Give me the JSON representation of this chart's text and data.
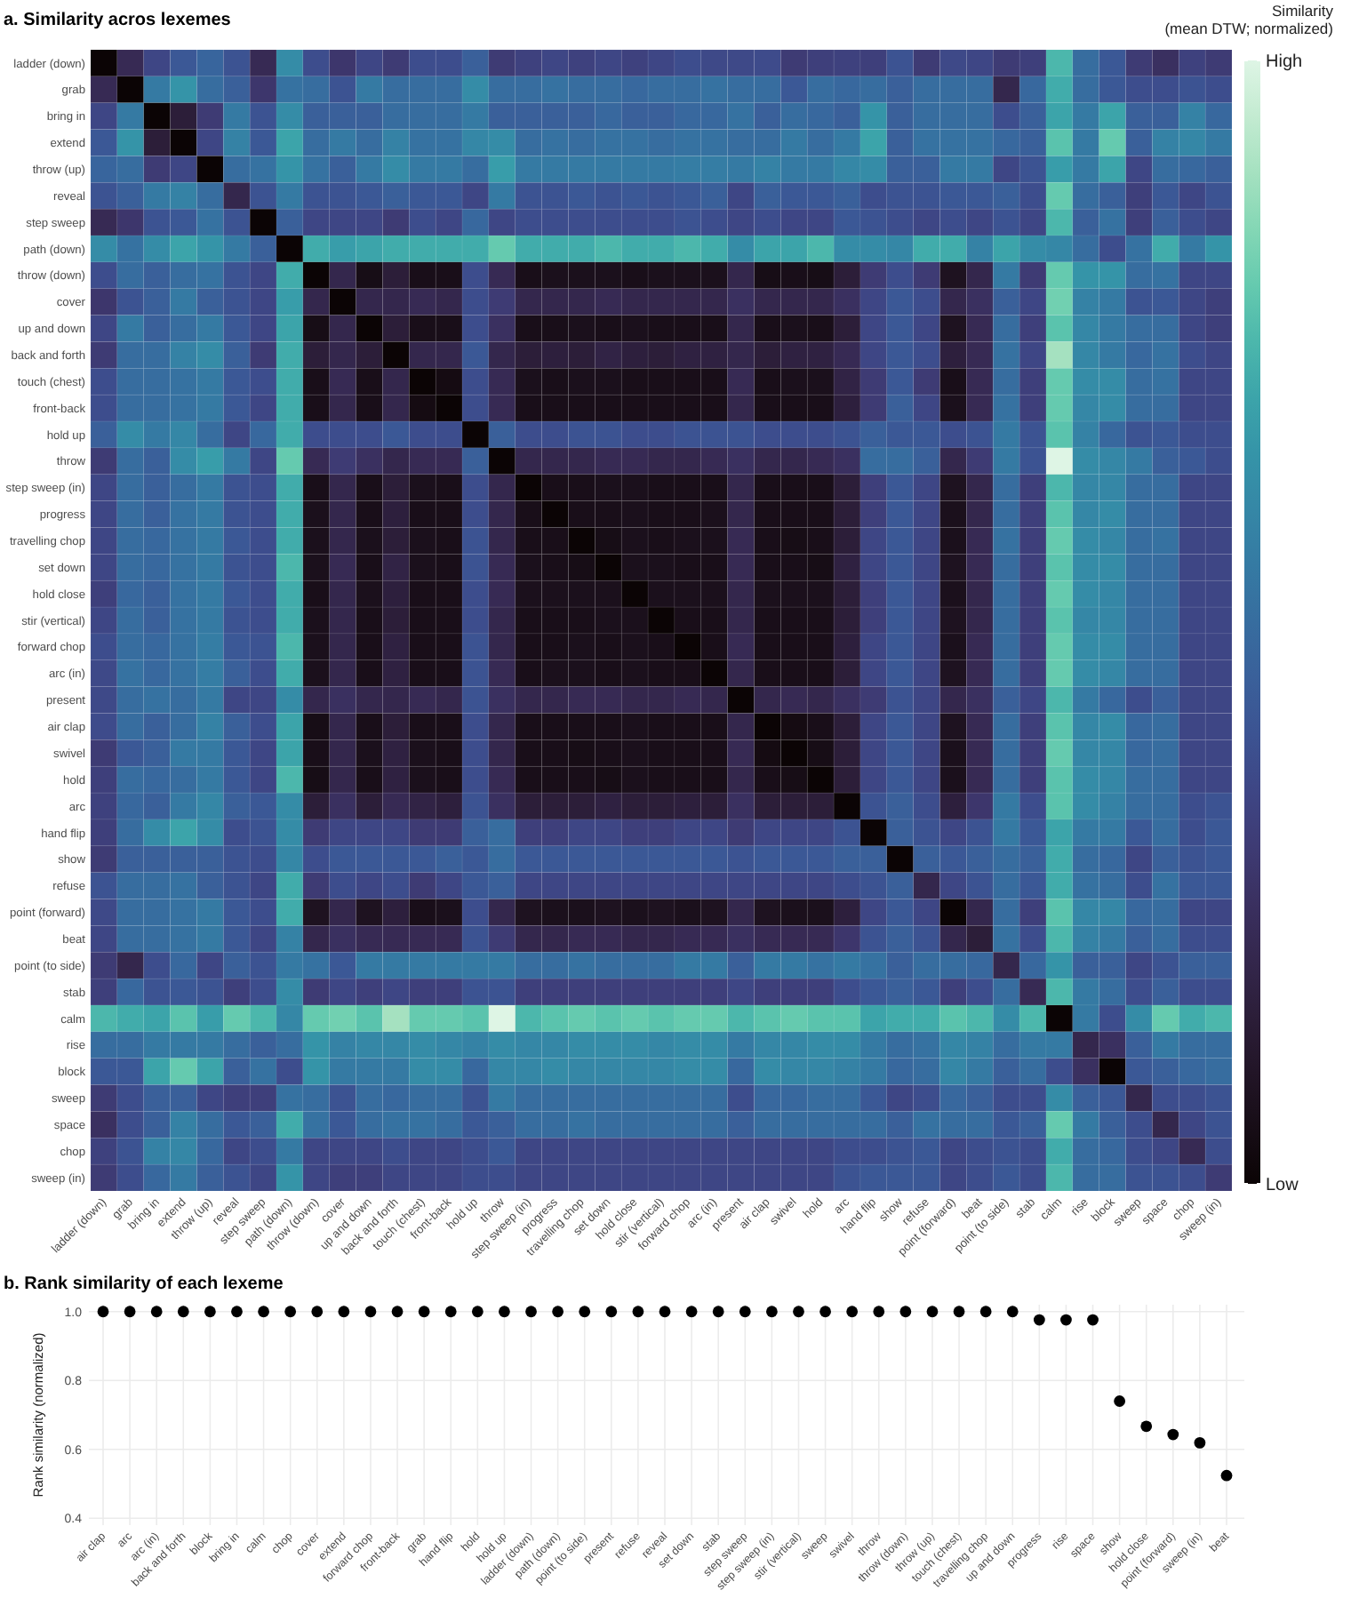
{
  "chart_data": [
    {
      "type": "heatmap",
      "title": "a. Similarity acros lexemes",
      "clabel": "Similarity\n(mean DTW; normalized)",
      "categories": [
        "ladder (down)",
        "grab",
        "bring in",
        "extend",
        "throw (up)",
        "reveal",
        "step sweep",
        "path (down)",
        "throw (down)",
        "cover",
        "up and down",
        "back and forth",
        "touch (chest)",
        "front-back",
        "hold up",
        "throw",
        "step sweep (in)",
        "progress",
        "travelling chop",
        "set down",
        "hold close",
        "stir (vertical)",
        "forward chop",
        "arc (in)",
        "present",
        "air clap",
        "swivel",
        "hold",
        "arc",
        "hand flip",
        "show",
        "refuse",
        "point (forward)",
        "beat",
        "point (to side)",
        "stab",
        "calm",
        "rise",
        "block",
        "sweep",
        "space",
        "chop",
        "sweep (in)"
      ],
      "y_categories": [
        "ladder (down)",
        "grab",
        "bring in",
        "extend",
        "throw (up)",
        "reveal",
        "step sweep",
        "path (down)",
        "throw (down)",
        "cover",
        "up and down",
        "back and forth",
        "touch (chest)",
        "front-back",
        "hold up",
        "throw",
        "step sweep (in)",
        "progress",
        "travelling chop",
        "set down",
        "hold close",
        "stir (vertical)",
        "forward chop",
        "arc (in)",
        "present",
        "air clap",
        "swivel",
        "hold",
        "arc",
        "hand flip",
        "show",
        "refuse",
        "point (forward)",
        "beat",
        "point (to side)",
        "stab",
        "calm",
        "rise",
        "block",
        "sweep",
        "space",
        "chop",
        "sweep (in)"
      ],
      "clim": [
        0,
        1
      ],
      "cticks": [
        {
          "value": 1,
          "label": "High"
        },
        {
          "value": 0,
          "label": "Low"
        }
      ],
      "cells": [
        [
          0,
          0.22,
          0.35,
          0.42,
          0.47,
          0.4,
          0.22,
          0.62,
          0.38,
          0.28,
          0.35,
          0.3,
          0.38,
          0.38,
          0.45,
          0.3,
          0.33,
          0.35,
          0.33,
          0.35,
          0.33,
          0.35,
          0.38,
          0.36,
          0.36,
          0.37,
          0.3,
          0.32,
          0.33,
          0.32,
          0.4,
          0.3,
          0.36,
          0.35,
          0.3,
          0.32,
          0.75,
          0.5,
          0.42,
          0.3,
          0.25,
          0.33,
          0.3
        ],
        [
          0.22,
          0,
          0.55,
          0.65,
          0.5,
          0.45,
          0.28,
          0.52,
          0.5,
          0.4,
          0.55,
          0.5,
          0.5,
          0.5,
          0.62,
          0.5,
          0.5,
          0.52,
          0.5,
          0.5,
          0.48,
          0.5,
          0.5,
          0.52,
          0.5,
          0.5,
          0.42,
          0.5,
          0.48,
          0.5,
          0.45,
          0.5,
          0.5,
          0.5,
          0.2,
          0.48,
          0.72,
          0.5,
          0.42,
          0.38,
          0.38,
          0.4,
          0.38
        ],
        [
          0.35,
          0.55,
          0,
          0.15,
          0.3,
          0.55,
          0.4,
          0.62,
          0.45,
          0.45,
          0.45,
          0.5,
          0.5,
          0.5,
          0.55,
          0.45,
          0.45,
          0.45,
          0.45,
          0.48,
          0.45,
          0.45,
          0.48,
          0.48,
          0.52,
          0.45,
          0.5,
          0.48,
          0.45,
          0.65,
          0.45,
          0.5,
          0.5,
          0.5,
          0.38,
          0.45,
          0.7,
          0.55,
          0.7,
          0.45,
          0.45,
          0.58,
          0.48
        ],
        [
          0.42,
          0.65,
          0.15,
          0,
          0.35,
          0.58,
          0.42,
          0.7,
          0.5,
          0.55,
          0.5,
          0.58,
          0.52,
          0.52,
          0.6,
          0.62,
          0.5,
          0.52,
          0.5,
          0.52,
          0.52,
          0.5,
          0.52,
          0.52,
          0.5,
          0.5,
          0.55,
          0.5,
          0.55,
          0.7,
          0.45,
          0.52,
          0.52,
          0.52,
          0.48,
          0.45,
          0.78,
          0.55,
          0.8,
          0.45,
          0.58,
          0.6,
          0.55
        ],
        [
          0.47,
          0.5,
          0.3,
          0.35,
          0,
          0.5,
          0.52,
          0.65,
          0.52,
          0.45,
          0.55,
          0.62,
          0.55,
          0.55,
          0.5,
          0.68,
          0.55,
          0.55,
          0.55,
          0.55,
          0.55,
          0.55,
          0.56,
          0.56,
          0.55,
          0.58,
          0.55,
          0.55,
          0.6,
          0.62,
          0.45,
          0.45,
          0.55,
          0.55,
          0.35,
          0.4,
          0.68,
          0.55,
          0.7,
          0.35,
          0.5,
          0.48,
          0.45
        ],
        [
          0.4,
          0.45,
          0.55,
          0.58,
          0.5,
          0.2,
          0.4,
          0.55,
          0.4,
          0.4,
          0.42,
          0.45,
          0.42,
          0.42,
          0.35,
          0.55,
          0.4,
          0.4,
          0.42,
          0.4,
          0.42,
          0.4,
          0.42,
          0.45,
          0.35,
          0.45,
          0.42,
          0.42,
          0.45,
          0.38,
          0.4,
          0.4,
          0.42,
          0.42,
          0.45,
          0.38,
          0.8,
          0.5,
          0.45,
          0.32,
          0.42,
          0.35,
          0.4
        ],
        [
          0.22,
          0.28,
          0.4,
          0.42,
          0.52,
          0.4,
          0,
          0.45,
          0.35,
          0.35,
          0.35,
          0.3,
          0.38,
          0.35,
          0.48,
          0.35,
          0.38,
          0.38,
          0.38,
          0.38,
          0.38,
          0.38,
          0.4,
          0.38,
          0.35,
          0.38,
          0.35,
          0.35,
          0.42,
          0.4,
          0.38,
          0.35,
          0.38,
          0.35,
          0.4,
          0.35,
          0.75,
          0.45,
          0.52,
          0.32,
          0.45,
          0.38,
          0.35
        ],
        [
          0.62,
          0.52,
          0.62,
          0.7,
          0.65,
          0.55,
          0.45,
          0,
          0.72,
          0.68,
          0.7,
          0.72,
          0.72,
          0.72,
          0.72,
          0.8,
          0.72,
          0.72,
          0.72,
          0.75,
          0.72,
          0.72,
          0.75,
          0.72,
          0.62,
          0.7,
          0.7,
          0.75,
          0.62,
          0.62,
          0.6,
          0.72,
          0.72,
          0.58,
          0.7,
          0.62,
          0.6,
          0.5,
          0.38,
          0.52,
          0.72,
          0.55,
          0.65
        ],
        [
          0.38,
          0.5,
          0.45,
          0.5,
          0.52,
          0.4,
          0.35,
          0.72,
          0,
          0.2,
          0.05,
          0.15,
          0.06,
          0.06,
          0.38,
          0.22,
          0.06,
          0.07,
          0.07,
          0.07,
          0.06,
          0.07,
          0.07,
          0.07,
          0.2,
          0.05,
          0.06,
          0.05,
          0.15,
          0.3,
          0.38,
          0.3,
          0.08,
          0.2,
          0.55,
          0.3,
          0.8,
          0.65,
          0.65,
          0.5,
          0.52,
          0.35,
          0.35
        ],
        [
          0.28,
          0.4,
          0.45,
          0.55,
          0.45,
          0.4,
          0.35,
          0.68,
          0.2,
          0,
          0.2,
          0.2,
          0.22,
          0.2,
          0.38,
          0.3,
          0.2,
          0.2,
          0.2,
          0.22,
          0.2,
          0.2,
          0.2,
          0.2,
          0.25,
          0.2,
          0.2,
          0.2,
          0.25,
          0.35,
          0.42,
          0.38,
          0.2,
          0.25,
          0.45,
          0.35,
          0.82,
          0.58,
          0.55,
          0.4,
          0.42,
          0.35,
          0.32
        ],
        [
          0.35,
          0.55,
          0.45,
          0.5,
          0.55,
          0.42,
          0.35,
          0.7,
          0.05,
          0.2,
          0,
          0.15,
          0.06,
          0.06,
          0.38,
          0.25,
          0.06,
          0.06,
          0.07,
          0.06,
          0.07,
          0.06,
          0.06,
          0.06,
          0.2,
          0.06,
          0.07,
          0.06,
          0.15,
          0.35,
          0.42,
          0.35,
          0.08,
          0.22,
          0.5,
          0.32,
          0.78,
          0.6,
          0.55,
          0.5,
          0.5,
          0.35,
          0.32
        ],
        [
          0.3,
          0.5,
          0.5,
          0.58,
          0.62,
          0.45,
          0.3,
          0.72,
          0.15,
          0.2,
          0.15,
          0,
          0.2,
          0.2,
          0.42,
          0.2,
          0.15,
          0.16,
          0.15,
          0.18,
          0.16,
          0.15,
          0.17,
          0.17,
          0.2,
          0.15,
          0.17,
          0.17,
          0.22,
          0.35,
          0.42,
          0.38,
          0.16,
          0.22,
          0.52,
          0.35,
          0.9,
          0.6,
          0.55,
          0.48,
          0.52,
          0.38,
          0.35
        ],
        [
          0.38,
          0.5,
          0.5,
          0.52,
          0.55,
          0.42,
          0.38,
          0.72,
          0.06,
          0.22,
          0.06,
          0.2,
          0,
          0.04,
          0.38,
          0.22,
          0.07,
          0.06,
          0.07,
          0.07,
          0.06,
          0.06,
          0.06,
          0.06,
          0.22,
          0.06,
          0.07,
          0.07,
          0.18,
          0.3,
          0.42,
          0.3,
          0.06,
          0.22,
          0.5,
          0.32,
          0.8,
          0.62,
          0.62,
          0.5,
          0.52,
          0.35,
          0.35
        ],
        [
          0.38,
          0.5,
          0.5,
          0.52,
          0.55,
          0.42,
          0.35,
          0.72,
          0.06,
          0.2,
          0.06,
          0.2,
          0.04,
          0,
          0.38,
          0.22,
          0.06,
          0.06,
          0.06,
          0.06,
          0.06,
          0.06,
          0.06,
          0.06,
          0.2,
          0.06,
          0.06,
          0.06,
          0.16,
          0.3,
          0.45,
          0.35,
          0.07,
          0.22,
          0.52,
          0.32,
          0.8,
          0.6,
          0.62,
          0.5,
          0.5,
          0.35,
          0.35
        ],
        [
          0.45,
          0.62,
          0.55,
          0.6,
          0.5,
          0.35,
          0.48,
          0.72,
          0.38,
          0.38,
          0.38,
          0.42,
          0.38,
          0.38,
          0,
          0.45,
          0.38,
          0.38,
          0.4,
          0.4,
          0.38,
          0.38,
          0.4,
          0.4,
          0.4,
          0.38,
          0.38,
          0.38,
          0.4,
          0.45,
          0.42,
          0.42,
          0.38,
          0.4,
          0.55,
          0.4,
          0.78,
          0.58,
          0.48,
          0.4,
          0.42,
          0.38,
          0.38
        ],
        [
          0.3,
          0.5,
          0.45,
          0.62,
          0.68,
          0.55,
          0.35,
          0.8,
          0.22,
          0.3,
          0.25,
          0.2,
          0.22,
          0.22,
          0.45,
          0,
          0.2,
          0.2,
          0.2,
          0.22,
          0.22,
          0.2,
          0.2,
          0.22,
          0.25,
          0.2,
          0.2,
          0.22,
          0.25,
          0.5,
          0.5,
          0.45,
          0.2,
          0.3,
          0.55,
          0.4,
          1,
          0.62,
          0.6,
          0.55,
          0.45,
          0.42,
          0.38
        ],
        [
          0.35,
          0.5,
          0.45,
          0.5,
          0.55,
          0.4,
          0.38,
          0.72,
          0.06,
          0.2,
          0.06,
          0.15,
          0.07,
          0.06,
          0.38,
          0.2,
          0,
          0.06,
          0.06,
          0.07,
          0.07,
          0.06,
          0.06,
          0.06,
          0.2,
          0.06,
          0.06,
          0.06,
          0.15,
          0.32,
          0.42,
          0.35,
          0.08,
          0.2,
          0.5,
          0.32,
          0.75,
          0.6,
          0.6,
          0.5,
          0.5,
          0.35,
          0.35
        ],
        [
          0.35,
          0.5,
          0.45,
          0.52,
          0.55,
          0.4,
          0.38,
          0.72,
          0.07,
          0.2,
          0.06,
          0.16,
          0.06,
          0.06,
          0.38,
          0.2,
          0.06,
          0,
          0.06,
          0.06,
          0.07,
          0.06,
          0.06,
          0.07,
          0.2,
          0.06,
          0.06,
          0.06,
          0.15,
          0.32,
          0.42,
          0.35,
          0.07,
          0.2,
          0.5,
          0.32,
          0.78,
          0.6,
          0.62,
          0.5,
          0.5,
          0.35,
          0.35
        ],
        [
          0.35,
          0.5,
          0.48,
          0.52,
          0.55,
          0.42,
          0.38,
          0.72,
          0.07,
          0.2,
          0.07,
          0.15,
          0.07,
          0.06,
          0.4,
          0.2,
          0.06,
          0.06,
          0,
          0.05,
          0.07,
          0.06,
          0.07,
          0.07,
          0.22,
          0.06,
          0.05,
          0.06,
          0.15,
          0.35,
          0.42,
          0.35,
          0.07,
          0.22,
          0.52,
          0.32,
          0.8,
          0.62,
          0.6,
          0.5,
          0.52,
          0.35,
          0.35
        ],
        [
          0.35,
          0.5,
          0.48,
          0.52,
          0.55,
          0.4,
          0.38,
          0.75,
          0.07,
          0.22,
          0.06,
          0.18,
          0.07,
          0.06,
          0.4,
          0.22,
          0.07,
          0.06,
          0.05,
          0,
          0.07,
          0.07,
          0.06,
          0.06,
          0.22,
          0.06,
          0.06,
          0.05,
          0.17,
          0.35,
          0.42,
          0.35,
          0.08,
          0.22,
          0.5,
          0.32,
          0.78,
          0.62,
          0.62,
          0.5,
          0.5,
          0.35,
          0.35
        ],
        [
          0.32,
          0.48,
          0.45,
          0.52,
          0.55,
          0.42,
          0.38,
          0.72,
          0.06,
          0.2,
          0.07,
          0.16,
          0.06,
          0.06,
          0.38,
          0.22,
          0.07,
          0.07,
          0.07,
          0.07,
          0,
          0.07,
          0.07,
          0.07,
          0.2,
          0.07,
          0.07,
          0.07,
          0.15,
          0.32,
          0.42,
          0.35,
          0.07,
          0.2,
          0.5,
          0.32,
          0.8,
          0.62,
          0.6,
          0.5,
          0.5,
          0.35,
          0.35
        ],
        [
          0.35,
          0.5,
          0.45,
          0.52,
          0.55,
          0.4,
          0.38,
          0.72,
          0.07,
          0.2,
          0.06,
          0.15,
          0.06,
          0.06,
          0.38,
          0.2,
          0.06,
          0.06,
          0.06,
          0.07,
          0.07,
          0,
          0.06,
          0.06,
          0.2,
          0.06,
          0.06,
          0.06,
          0.15,
          0.32,
          0.42,
          0.35,
          0.08,
          0.2,
          0.5,
          0.32,
          0.78,
          0.6,
          0.6,
          0.5,
          0.5,
          0.35,
          0.35
        ],
        [
          0.38,
          0.5,
          0.48,
          0.52,
          0.56,
          0.42,
          0.4,
          0.75,
          0.07,
          0.2,
          0.06,
          0.17,
          0.06,
          0.06,
          0.4,
          0.2,
          0.06,
          0.06,
          0.07,
          0.06,
          0.07,
          0.06,
          0,
          0.06,
          0.22,
          0.06,
          0.06,
          0.06,
          0.16,
          0.35,
          0.42,
          0.35,
          0.07,
          0.22,
          0.5,
          0.32,
          0.8,
          0.62,
          0.62,
          0.5,
          0.5,
          0.35,
          0.35
        ],
        [
          0.36,
          0.52,
          0.48,
          0.52,
          0.56,
          0.45,
          0.38,
          0.72,
          0.07,
          0.2,
          0.06,
          0.17,
          0.06,
          0.06,
          0.4,
          0.22,
          0.06,
          0.07,
          0.07,
          0.06,
          0.07,
          0.06,
          0.06,
          0,
          0.2,
          0.06,
          0.06,
          0.06,
          0.15,
          0.35,
          0.42,
          0.35,
          0.08,
          0.22,
          0.5,
          0.32,
          0.8,
          0.62,
          0.6,
          0.5,
          0.5,
          0.35,
          0.35
        ],
        [
          0.36,
          0.5,
          0.52,
          0.5,
          0.55,
          0.35,
          0.35,
          0.62,
          0.2,
          0.25,
          0.2,
          0.2,
          0.22,
          0.2,
          0.4,
          0.25,
          0.2,
          0.2,
          0.22,
          0.22,
          0.2,
          0.2,
          0.22,
          0.2,
          0,
          0.2,
          0.22,
          0.2,
          0.25,
          0.3,
          0.4,
          0.35,
          0.2,
          0.25,
          0.45,
          0.35,
          0.75,
          0.55,
          0.48,
          0.38,
          0.45,
          0.35,
          0.35
        ],
        [
          0.37,
          0.5,
          0.45,
          0.5,
          0.58,
          0.45,
          0.38,
          0.7,
          0.05,
          0.2,
          0.06,
          0.15,
          0.06,
          0.06,
          0.38,
          0.2,
          0.06,
          0.06,
          0.06,
          0.06,
          0.07,
          0.06,
          0.06,
          0.06,
          0.2,
          0,
          0.04,
          0.06,
          0.15,
          0.35,
          0.42,
          0.35,
          0.08,
          0.22,
          0.5,
          0.32,
          0.78,
          0.6,
          0.62,
          0.48,
          0.5,
          0.35,
          0.35
        ],
        [
          0.3,
          0.42,
          0.45,
          0.55,
          0.55,
          0.42,
          0.35,
          0.7,
          0.06,
          0.2,
          0.07,
          0.17,
          0.07,
          0.06,
          0.38,
          0.2,
          0.06,
          0.06,
          0.05,
          0.06,
          0.07,
          0.06,
          0.06,
          0.06,
          0.22,
          0.04,
          0,
          0.05,
          0.15,
          0.35,
          0.42,
          0.35,
          0.07,
          0.22,
          0.5,
          0.32,
          0.8,
          0.6,
          0.6,
          0.48,
          0.5,
          0.35,
          0.35
        ],
        [
          0.32,
          0.5,
          0.48,
          0.5,
          0.55,
          0.42,
          0.35,
          0.75,
          0.05,
          0.2,
          0.06,
          0.17,
          0.07,
          0.06,
          0.38,
          0.22,
          0.06,
          0.06,
          0.06,
          0.05,
          0.07,
          0.06,
          0.06,
          0.06,
          0.2,
          0.06,
          0.05,
          0,
          0.15,
          0.35,
          0.42,
          0.35,
          0.07,
          0.22,
          0.5,
          0.32,
          0.78,
          0.62,
          0.6,
          0.5,
          0.5,
          0.35,
          0.35
        ],
        [
          0.33,
          0.48,
          0.45,
          0.55,
          0.6,
          0.45,
          0.42,
          0.62,
          0.15,
          0.25,
          0.15,
          0.22,
          0.18,
          0.16,
          0.4,
          0.25,
          0.15,
          0.15,
          0.15,
          0.17,
          0.15,
          0.15,
          0.16,
          0.15,
          0.25,
          0.15,
          0.15,
          0.15,
          0,
          0.4,
          0.45,
          0.38,
          0.16,
          0.28,
          0.55,
          0.38,
          0.78,
          0.62,
          0.58,
          0.5,
          0.5,
          0.38,
          0.4
        ],
        [
          0.32,
          0.5,
          0.62,
          0.7,
          0.62,
          0.38,
          0.4,
          0.62,
          0.3,
          0.35,
          0.35,
          0.35,
          0.3,
          0.3,
          0.45,
          0.5,
          0.32,
          0.32,
          0.35,
          0.35,
          0.32,
          0.32,
          0.35,
          0.35,
          0.3,
          0.35,
          0.35,
          0.35,
          0.4,
          0,
          0.45,
          0.4,
          0.35,
          0.4,
          0.55,
          0.42,
          0.7,
          0.55,
          0.55,
          0.42,
          0.5,
          0.38,
          0.42
        ],
        [
          0.3,
          0.45,
          0.45,
          0.45,
          0.45,
          0.4,
          0.38,
          0.6,
          0.38,
          0.42,
          0.42,
          0.42,
          0.42,
          0.45,
          0.42,
          0.5,
          0.42,
          0.42,
          0.42,
          0.42,
          0.42,
          0.42,
          0.42,
          0.42,
          0.4,
          0.42,
          0.42,
          0.42,
          0.45,
          0.45,
          0,
          0.45,
          0.42,
          0.45,
          0.5,
          0.45,
          0.72,
          0.5,
          0.48,
          0.35,
          0.45,
          0.4,
          0.42
        ],
        [
          0.4,
          0.5,
          0.5,
          0.52,
          0.45,
          0.4,
          0.35,
          0.72,
          0.3,
          0.38,
          0.35,
          0.38,
          0.3,
          0.35,
          0.42,
          0.45,
          0.35,
          0.35,
          0.35,
          0.35,
          0.35,
          0.35,
          0.35,
          0.35,
          0.35,
          0.35,
          0.35,
          0.35,
          0.38,
          0.4,
          0.45,
          0.2,
          0.35,
          0.4,
          0.5,
          0.42,
          0.72,
          0.52,
          0.5,
          0.38,
          0.52,
          0.42,
          0.42
        ],
        [
          0.36,
          0.5,
          0.5,
          0.52,
          0.55,
          0.42,
          0.38,
          0.72,
          0.08,
          0.2,
          0.08,
          0.16,
          0.06,
          0.07,
          0.38,
          0.2,
          0.08,
          0.07,
          0.07,
          0.08,
          0.07,
          0.08,
          0.07,
          0.08,
          0.2,
          0.08,
          0.07,
          0.07,
          0.16,
          0.35,
          0.42,
          0.35,
          0,
          0.2,
          0.5,
          0.32,
          0.78,
          0.6,
          0.6,
          0.48,
          0.5,
          0.35,
          0.35
        ],
        [
          0.35,
          0.5,
          0.5,
          0.52,
          0.55,
          0.42,
          0.35,
          0.58,
          0.2,
          0.25,
          0.22,
          0.22,
          0.22,
          0.22,
          0.4,
          0.3,
          0.2,
          0.2,
          0.22,
          0.22,
          0.2,
          0.2,
          0.22,
          0.22,
          0.25,
          0.22,
          0.22,
          0.22,
          0.28,
          0.4,
          0.45,
          0.4,
          0.2,
          0.15,
          0.52,
          0.38,
          0.75,
          0.58,
          0.55,
          0.45,
          0.5,
          0.38,
          0.38
        ],
        [
          0.3,
          0.2,
          0.38,
          0.48,
          0.35,
          0.45,
          0.4,
          0.55,
          0.52,
          0.42,
          0.55,
          0.55,
          0.55,
          0.55,
          0.55,
          0.55,
          0.5,
          0.5,
          0.52,
          0.5,
          0.5,
          0.5,
          0.55,
          0.55,
          0.45,
          0.55,
          0.55,
          0.52,
          0.55,
          0.52,
          0.45,
          0.5,
          0.5,
          0.48,
          0.2,
          0.48,
          0.65,
          0.45,
          0.45,
          0.35,
          0.4,
          0.45,
          0.45
        ],
        [
          0.32,
          0.48,
          0.4,
          0.42,
          0.4,
          0.32,
          0.38,
          0.62,
          0.3,
          0.35,
          0.32,
          0.35,
          0.32,
          0.32,
          0.4,
          0.4,
          0.32,
          0.32,
          0.32,
          0.32,
          0.32,
          0.32,
          0.32,
          0.32,
          0.35,
          0.32,
          0.32,
          0.32,
          0.38,
          0.42,
          0.45,
          0.42,
          0.32,
          0.38,
          0.5,
          0.22,
          0.75,
          0.55,
          0.5,
          0.38,
          0.45,
          0.38,
          0.38
        ],
        [
          0.75,
          0.72,
          0.7,
          0.78,
          0.68,
          0.8,
          0.75,
          0.6,
          0.8,
          0.82,
          0.78,
          0.9,
          0.8,
          0.8,
          0.78,
          1,
          0.75,
          0.78,
          0.8,
          0.78,
          0.8,
          0.78,
          0.8,
          0.8,
          0.75,
          0.78,
          0.8,
          0.78,
          0.78,
          0.7,
          0.72,
          0.72,
          0.78,
          0.75,
          0.62,
          0.75,
          0,
          0.55,
          0.38,
          0.62,
          0.8,
          0.72,
          0.75
        ],
        [
          0.5,
          0.5,
          0.55,
          0.55,
          0.55,
          0.5,
          0.45,
          0.5,
          0.65,
          0.58,
          0.6,
          0.6,
          0.62,
          0.6,
          0.58,
          0.62,
          0.6,
          0.6,
          0.62,
          0.62,
          0.62,
          0.6,
          0.62,
          0.62,
          0.55,
          0.6,
          0.6,
          0.62,
          0.62,
          0.55,
          0.5,
          0.52,
          0.6,
          0.58,
          0.5,
          0.55,
          0.55,
          0.2,
          0.25,
          0.45,
          0.55,
          0.5,
          0.5
        ],
        [
          0.42,
          0.42,
          0.7,
          0.8,
          0.7,
          0.45,
          0.52,
          0.38,
          0.65,
          0.55,
          0.55,
          0.55,
          0.62,
          0.62,
          0.48,
          0.6,
          0.6,
          0.62,
          0.6,
          0.6,
          0.6,
          0.6,
          0.62,
          0.62,
          0.48,
          0.62,
          0.6,
          0.6,
          0.58,
          0.55,
          0.48,
          0.5,
          0.6,
          0.55,
          0.45,
          0.5,
          0.38,
          0.25,
          0,
          0.42,
          0.45,
          0.48,
          0.5
        ],
        [
          0.3,
          0.38,
          0.45,
          0.45,
          0.35,
          0.32,
          0.32,
          0.52,
          0.5,
          0.4,
          0.5,
          0.48,
          0.5,
          0.5,
          0.4,
          0.55,
          0.5,
          0.5,
          0.5,
          0.5,
          0.5,
          0.5,
          0.5,
          0.5,
          0.38,
          0.48,
          0.48,
          0.5,
          0.5,
          0.42,
          0.35,
          0.38,
          0.48,
          0.45,
          0.38,
          0.38,
          0.62,
          0.45,
          0.42,
          0.2,
          0.38,
          0.38,
          0.4
        ],
        [
          0.25,
          0.38,
          0.45,
          0.58,
          0.5,
          0.42,
          0.45,
          0.72,
          0.52,
          0.42,
          0.5,
          0.52,
          0.52,
          0.5,
          0.42,
          0.45,
          0.5,
          0.5,
          0.52,
          0.5,
          0.5,
          0.5,
          0.5,
          0.5,
          0.45,
          0.5,
          0.5,
          0.5,
          0.5,
          0.5,
          0.45,
          0.52,
          0.5,
          0.5,
          0.42,
          0.45,
          0.8,
          0.55,
          0.45,
          0.38,
          0.2,
          0.35,
          0.4
        ],
        [
          0.33,
          0.4,
          0.58,
          0.6,
          0.48,
          0.35,
          0.38,
          0.55,
          0.35,
          0.35,
          0.35,
          0.38,
          0.35,
          0.35,
          0.38,
          0.42,
          0.35,
          0.35,
          0.35,
          0.35,
          0.35,
          0.35,
          0.35,
          0.35,
          0.35,
          0.35,
          0.35,
          0.35,
          0.38,
          0.38,
          0.4,
          0.42,
          0.35,
          0.38,
          0.4,
          0.38,
          0.72,
          0.5,
          0.48,
          0.38,
          0.35,
          0.22,
          0.38
        ],
        [
          0.3,
          0.38,
          0.48,
          0.55,
          0.45,
          0.4,
          0.35,
          0.65,
          0.35,
          0.32,
          0.32,
          0.35,
          0.35,
          0.35,
          0.38,
          0.38,
          0.35,
          0.35,
          0.35,
          0.35,
          0.35,
          0.35,
          0.35,
          0.35,
          0.35,
          0.35,
          0.35,
          0.35,
          0.4,
          0.42,
          0.42,
          0.42,
          0.35,
          0.38,
          0.42,
          0.38,
          0.75,
          0.5,
          0.5,
          0.4,
          0.4,
          0.38,
          0.3
        ]
      ]
    },
    {
      "type": "scatter",
      "title": "b. Rank similarity of each lexeme",
      "ylabel": "Rank similarity (normalized)",
      "categories": [
        "air clap",
        "arc",
        "arc (in)",
        "back and forth",
        "block",
        "bring in",
        "calm",
        "chop",
        "cover",
        "extend",
        "forward chop",
        "front-back",
        "grab",
        "hand flip",
        "hold",
        "hold up",
        "ladder (down)",
        "path (down)",
        "point (to side)",
        "present",
        "refuse",
        "reveal",
        "set down",
        "stab",
        "step sweep",
        "step sweep (in)",
        "stir (vertical)",
        "sweep",
        "swivel",
        "throw",
        "throw (down)",
        "throw (up)",
        "touch (chest)",
        "travelling chop",
        "up and down",
        "progress",
        "rise",
        "space",
        "show",
        "hold close",
        "point (forward)",
        "sweep (in)",
        "beat"
      ],
      "values": [
        1,
        1,
        1,
        1,
        1,
        1,
        1,
        1,
        1,
        1,
        1,
        1,
        1,
        1,
        1,
        1,
        1,
        1,
        1,
        1,
        1,
        1,
        1,
        1,
        1,
        1,
        1,
        1,
        1,
        1,
        1,
        1,
        1,
        1,
        1,
        0.976,
        0.976,
        0.976,
        0.74,
        0.667,
        0.643,
        0.619,
        0.524
      ],
      "color": "#000000",
      "marker": "circle",
      "ylim": [
        0.38,
        1.02
      ],
      "yticks": [
        0.4,
        0.6,
        0.8,
        {
          "value": 1,
          "label": "1.0"
        }
      ],
      "grid": true
    }
  ]
}
